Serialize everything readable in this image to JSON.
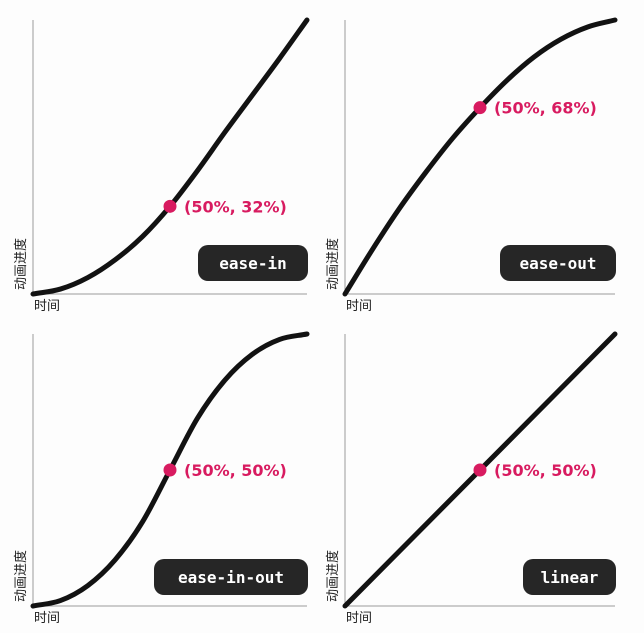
{
  "chart_data": [
    {
      "type": "line",
      "title": "",
      "xlabel": "时间",
      "ylabel": "动画进度",
      "xlim": [
        0,
        100
      ],
      "ylim": [
        0,
        100
      ],
      "grid": false,
      "series": [
        {
          "name": "ease-in",
          "x": [
            0,
            10,
            20,
            30,
            40,
            50,
            60,
            70,
            80,
            90,
            100
          ],
          "y": [
            0,
            1.8,
            6.0,
            12.5,
            21.0,
            32.0,
            45.0,
            59.0,
            72.5,
            86.0,
            100
          ]
        }
      ],
      "annotation": {
        "text": "(50%, 32%)",
        "x": 50,
        "y": 32
      },
      "badge": "ease-in"
    },
    {
      "type": "line",
      "title": "",
      "xlabel": "时间",
      "ylabel": "动画进度",
      "xlim": [
        0,
        100
      ],
      "ylim": [
        0,
        100
      ],
      "grid": false,
      "series": [
        {
          "name": "ease-out",
          "x": [
            0,
            10,
            20,
            30,
            40,
            50,
            60,
            70,
            80,
            90,
            100
          ],
          "y": [
            0,
            16.0,
            31.0,
            44.5,
            57.0,
            68.0,
            78.0,
            86.5,
            93.0,
            97.5,
            100
          ]
        }
      ],
      "annotation": {
        "text": "(50%, 68%)",
        "x": 50,
        "y": 68
      },
      "badge": "ease-out"
    },
    {
      "type": "line",
      "title": "",
      "xlabel": "时间",
      "ylabel": "动画进度",
      "xlim": [
        0,
        100
      ],
      "ylim": [
        0,
        100
      ],
      "grid": false,
      "series": [
        {
          "name": "ease-in-out",
          "x": [
            0,
            10,
            20,
            30,
            40,
            50,
            60,
            70,
            80,
            90,
            100
          ],
          "y": [
            0,
            2.0,
            7.5,
            17.0,
            31.0,
            50.0,
            69.0,
            83.0,
            92.5,
            98.0,
            100
          ]
        }
      ],
      "annotation": {
        "text": "(50%, 50%)",
        "x": 50,
        "y": 50
      },
      "badge": "ease-in-out"
    },
    {
      "type": "line",
      "title": "",
      "xlabel": "时间",
      "ylabel": "动画进度",
      "xlim": [
        0,
        100
      ],
      "ylim": [
        0,
        100
      ],
      "grid": false,
      "series": [
        {
          "name": "linear",
          "x": [
            0,
            100
          ],
          "y": [
            0,
            100
          ]
        }
      ],
      "annotation": {
        "text": "(50%, 50%)",
        "x": 50,
        "y": 50
      },
      "badge": "linear"
    }
  ],
  "colors": {
    "curve": "#121212",
    "highlight": "#d81b60",
    "badge": "#262626",
    "axis": "#9a9a9a"
  }
}
